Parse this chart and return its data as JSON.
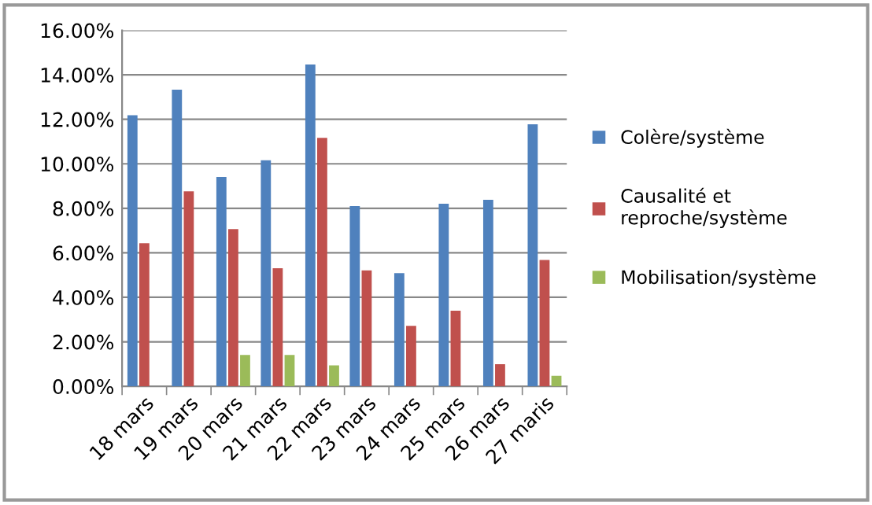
{
  "chart_data": {
    "type": "bar",
    "categories": [
      "18 mars",
      "19 mars",
      "20 mars",
      "21 mars",
      "22 mars",
      "23 mars",
      "24 mars",
      "25 mars",
      "26 mars",
      "27 maris"
    ],
    "series": [
      {
        "name": "Colère/système",
        "color": "#4f81bd",
        "values": [
          12.18,
          13.33,
          9.41,
          10.16,
          14.46,
          8.1,
          5.09,
          8.21,
          8.38,
          11.78
        ]
      },
      {
        "name": "Causalité et\nreproche/système",
        "color": "#c0504d",
        "values": [
          6.43,
          8.76,
          7.07,
          5.31,
          11.17,
          5.21,
          2.72,
          3.4,
          0.99,
          5.68
        ]
      },
      {
        "name": "Mobilisation/système",
        "color": "#9bbb59",
        "values": [
          0,
          0,
          1.41,
          1.41,
          0.94,
          0,
          0,
          0,
          0,
          0.47
        ]
      }
    ],
    "ylim": [
      0,
      16
    ],
    "yticks": [
      {
        "value": 0,
        "label": "0.00%"
      },
      {
        "value": 2,
        "label": "2.00%"
      },
      {
        "value": 4,
        "label": "4.00%"
      },
      {
        "value": 6,
        "label": "6.00%"
      },
      {
        "value": 8,
        "label": "8.00%"
      },
      {
        "value": 10,
        "label": "10.00%"
      },
      {
        "value": 12,
        "label": "12.00%"
      },
      {
        "value": 14,
        "label": "14.00%"
      },
      {
        "value": 16,
        "label": "16.00%"
      }
    ],
    "grid": "y",
    "legend": "right"
  }
}
